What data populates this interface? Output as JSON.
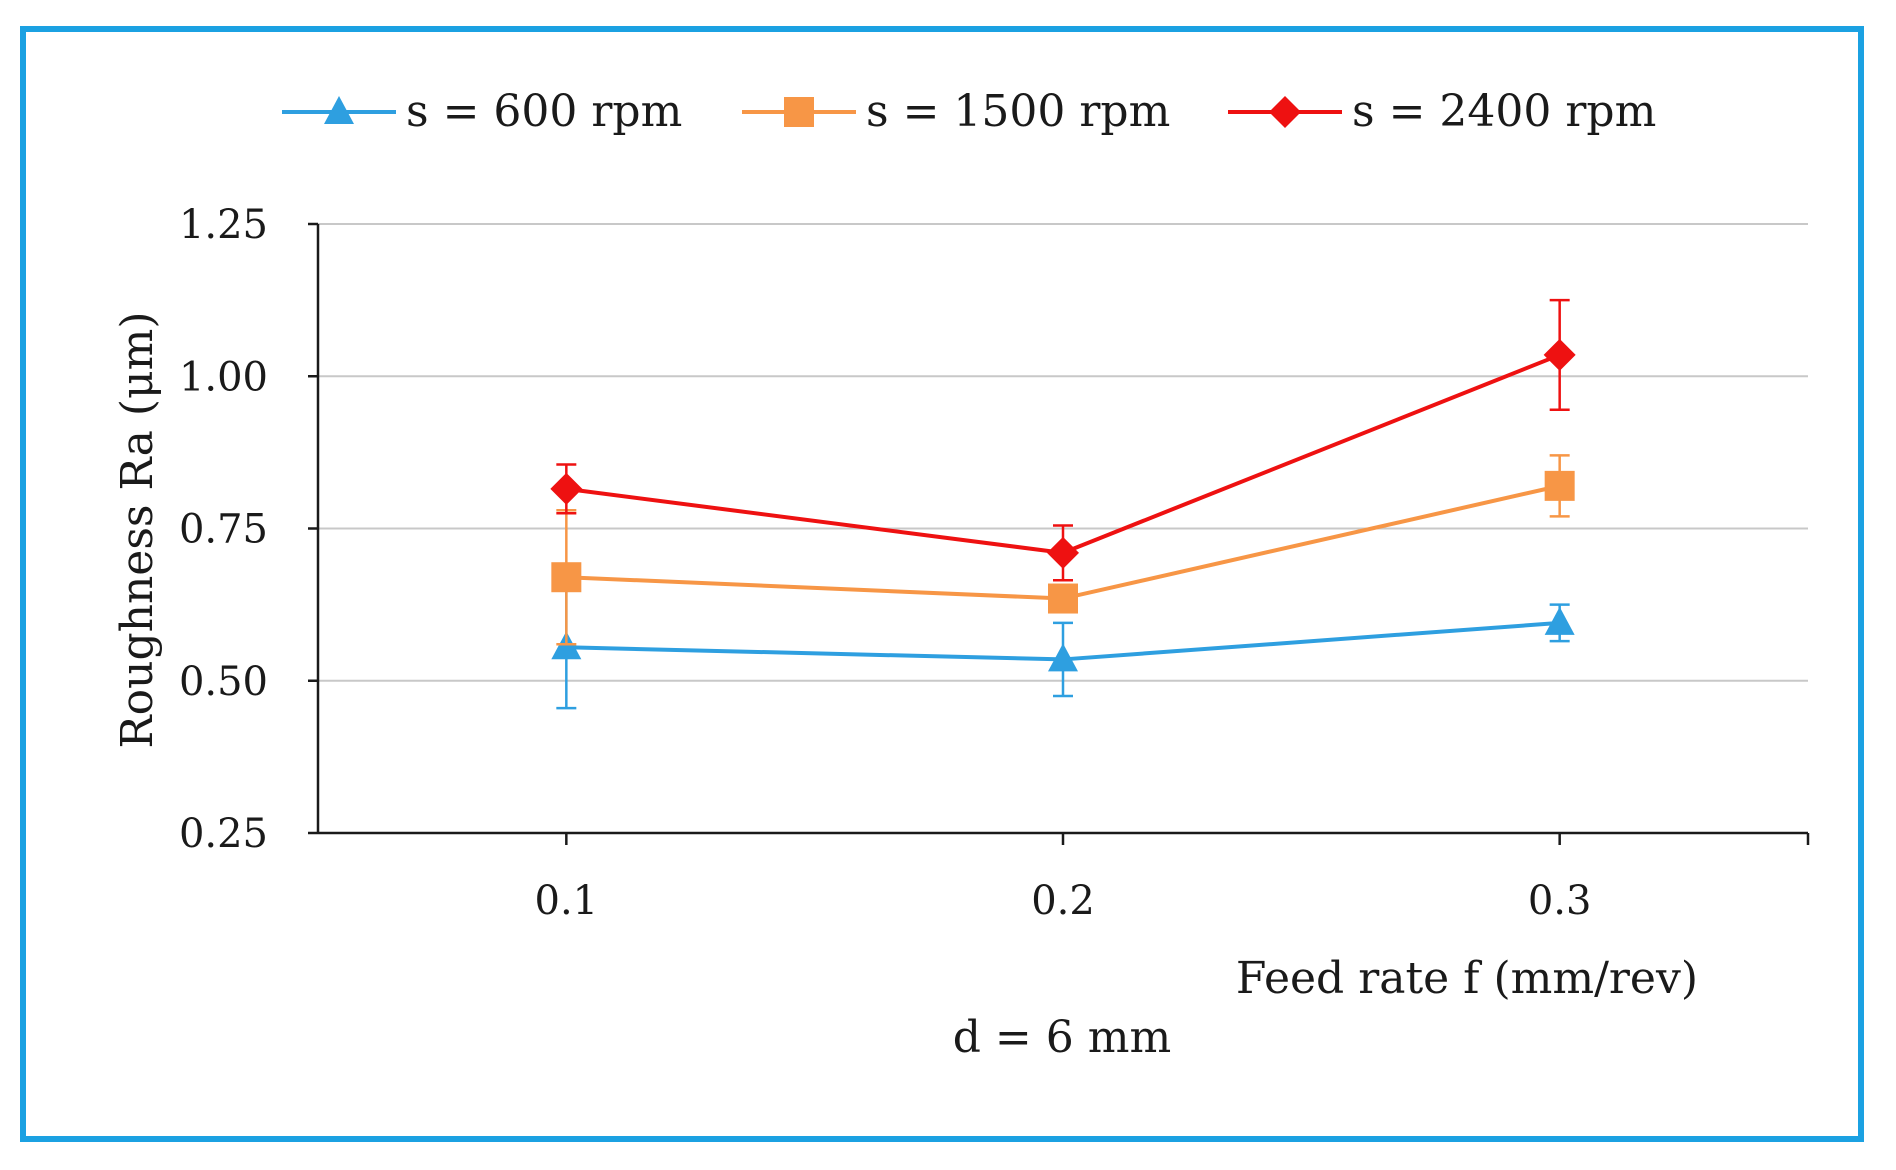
{
  "chart_data": {
    "type": "line",
    "title": "",
    "xlabel": "Feed rate f (mm/rev)",
    "ylabel": "Roughness Ra (μm)",
    "annotation": "d = 6 mm",
    "x": [
      0.1,
      0.2,
      0.3
    ],
    "x_tick_labels": [
      "0.1",
      "0.2",
      "0.3"
    ],
    "xlim": [
      0.05,
      0.35
    ],
    "ylim": [
      0.25,
      1.25
    ],
    "y_ticks": [
      0.25,
      0.5,
      0.75,
      1.0,
      1.25
    ],
    "y_tick_labels": [
      "0.25",
      "0.50",
      "0.75",
      "1.00",
      "1.25"
    ],
    "grid": true,
    "legend_position": "top",
    "series": [
      {
        "name": "s = 600 rpm",
        "color": "#2e9fe0",
        "marker": "triangle",
        "values": [
          0.555,
          0.535,
          0.595
        ],
        "errors": [
          0.1,
          0.06,
          0.03
        ]
      },
      {
        "name": "s = 1500 rpm",
        "color": "#f79646",
        "marker": "square",
        "values": [
          0.67,
          0.635,
          0.82
        ],
        "errors": [
          0.11,
          0.0,
          0.05
        ]
      },
      {
        "name": "s = 2400 rpm",
        "color": "#ee1111",
        "marker": "diamond",
        "values": [
          0.815,
          0.71,
          1.035
        ],
        "errors": [
          0.04,
          0.045,
          0.09
        ]
      }
    ]
  }
}
